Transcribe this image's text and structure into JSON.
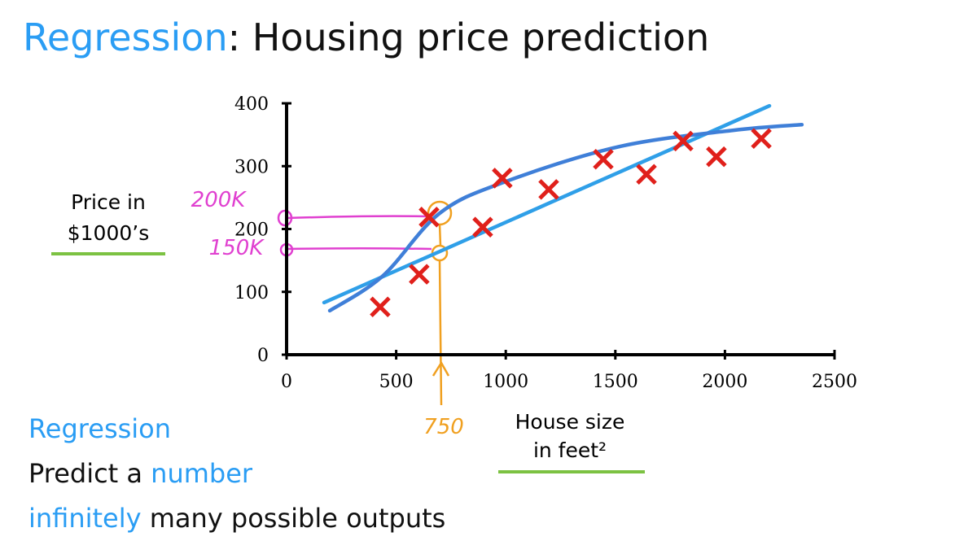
{
  "title": {
    "highlight": "Regression",
    "rest": ": Housing price prediction"
  },
  "chart_data": {
    "type": "scatter",
    "x": [
      427,
      605,
      650,
      895,
      984,
      1196,
      1445,
      1642,
      1809,
      1961,
      2166
    ],
    "values": [
      76,
      128,
      219,
      203,
      281,
      263,
      311,
      287,
      340,
      315,
      344
    ],
    "color": "#e0201b",
    "lines": [
      {
        "color": "#2f9fe8",
        "x": [
          171,
          2203
        ],
        "values": [
          83,
          396
        ]
      },
      {
        "color": "#3f7fd8",
        "x": [
          197,
          438,
          698,
          996,
          1516,
          2036,
          2351
        ],
        "values": [
          70,
          125,
          225,
          275,
          331,
          357,
          366
        ]
      }
    ],
    "xlim": [
      0,
      2500
    ],
    "ylim": [
      0,
      400
    ],
    "xticks": [
      0,
      500,
      1000,
      1500,
      2000,
      2500
    ],
    "yticks": [
      0,
      100,
      200,
      300,
      400
    ],
    "ylabel": [
      "Price in",
      "$1000’s"
    ],
    "xlabel": [
      "House size",
      "in feet²"
    ],
    "annotations": [
      "200K",
      "150K",
      "750"
    ]
  },
  "notes": {
    "heading": "Regression",
    "line1": {
      "plain": "Predict a ",
      "highlight": "number"
    },
    "line2": {
      "highlight": "infinitely",
      "plain": " many possible outputs"
    }
  }
}
